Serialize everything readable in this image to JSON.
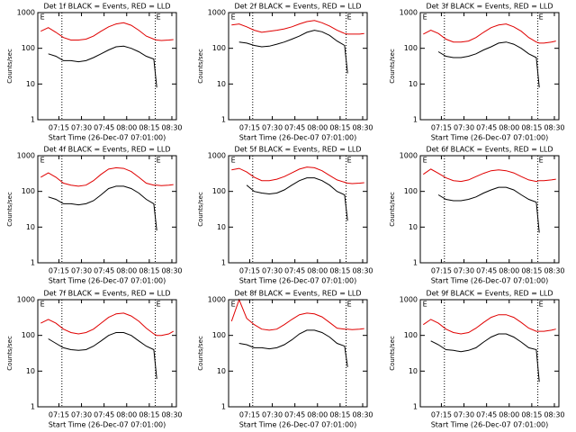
{
  "chart_data": [
    {
      "type": "line",
      "title": "Det 1f BLACK = Events, RED = LLD",
      "xlabel": "Start Time (26-Dec-07 07:01:00)",
      "ylabel": "Counts/sec",
      "log_y": true,
      "x": [
        "07:03",
        "07:08",
        "07:13",
        "07:18",
        "07:23",
        "07:28",
        "07:33",
        "07:38",
        "07:43",
        "07:48",
        "07:53",
        "07:58",
        "08:03",
        "08:08",
        "08:13",
        "08:18",
        "08:20",
        "08:23",
        "08:28",
        "08:31"
      ],
      "xlim": [
        "07:01",
        "08:33"
      ],
      "xticks": [
        "07:15",
        "07:30",
        "07:45",
        "08:00",
        "08:15",
        "08:30"
      ],
      "ylim": [
        1,
        1000
      ],
      "yticks": [
        1,
        10,
        100,
        1000
      ],
      "vlines": [
        "07:17",
        "08:19"
      ],
      "annotations": [
        {
          "x": "07:02",
          "label": "E"
        },
        {
          "x": "08:19",
          "label": "E"
        }
      ],
      "series": [
        {
          "name": "RED",
          "color": "#e00000",
          "values": [
            300,
            380,
            280,
            200,
            170,
            170,
            180,
            220,
            300,
            400,
            480,
            520,
            440,
            320,
            220,
            180,
            170,
            165,
            170,
            175
          ]
        },
        {
          "name": "BLACK",
          "color": "#000000",
          "values": [
            null,
            70,
            60,
            45,
            45,
            42,
            45,
            55,
            70,
            90,
            110,
            115,
            100,
            80,
            60,
            50,
            8,
            null,
            null,
            null
          ]
        }
      ]
    },
    {
      "type": "line",
      "title": "Det 2f BLACK = Events, RED = LLD",
      "xlabel": "Start Time (26-Dec-07 07:01:00)",
      "ylabel": "Counts/sec",
      "log_y": true,
      "x": [
        "07:03",
        "07:08",
        "07:13",
        "07:18",
        "07:23",
        "07:28",
        "07:33",
        "07:38",
        "07:43",
        "07:48",
        "07:53",
        "07:58",
        "08:03",
        "08:08",
        "08:13",
        "08:18",
        "08:20",
        "08:23",
        "08:28",
        "08:31"
      ],
      "xlim": [
        "07:01",
        "08:33"
      ],
      "xticks": [
        "07:15",
        "07:30",
        "07:45",
        "08:00",
        "08:15",
        "08:30"
      ],
      "ylim": [
        1,
        1000
      ],
      "yticks": [
        1,
        10,
        100,
        1000
      ],
      "vlines": [
        "07:17",
        "08:19"
      ],
      "annotations": [
        {
          "x": "07:02",
          "label": "E"
        },
        {
          "x": "08:19",
          "label": "E"
        }
      ],
      "series": [
        {
          "name": "RED",
          "color": "#e00000",
          "values": [
            450,
            480,
            400,
            320,
            280,
            300,
            320,
            350,
            400,
            480,
            560,
            600,
            520,
            420,
            320,
            260,
            250,
            250,
            250,
            260
          ]
        },
        {
          "name": "BLACK",
          "color": "#000000",
          "values": [
            null,
            150,
            140,
            120,
            110,
            115,
            130,
            150,
            180,
            220,
            280,
            320,
            290,
            230,
            160,
            120,
            20,
            null,
            null,
            null
          ]
        }
      ]
    },
    {
      "type": "line",
      "title": "Det 3f BLACK = Events, RED = LLD",
      "xlabel": "Start Time (26-Dec-07 07:01:00)",
      "ylabel": "Counts/sec",
      "log_y": true,
      "x": [
        "07:03",
        "07:08",
        "07:13",
        "07:18",
        "07:23",
        "07:28",
        "07:33",
        "07:38",
        "07:43",
        "07:48",
        "07:53",
        "07:58",
        "08:03",
        "08:08",
        "08:13",
        "08:18",
        "08:20",
        "08:23",
        "08:28",
        "08:31"
      ],
      "xlim": [
        "07:01",
        "08:33"
      ],
      "xticks": [
        "07:15",
        "07:30",
        "07:45",
        "08:00",
        "08:15",
        "08:30"
      ],
      "ylim": [
        1,
        1000
      ],
      "yticks": [
        1,
        10,
        100,
        1000
      ],
      "vlines": [
        "07:17",
        "08:19"
      ],
      "annotations": [
        {
          "x": "07:02",
          "label": "E"
        },
        {
          "x": "08:19",
          "label": "E"
        }
      ],
      "series": [
        {
          "name": "RED",
          "color": "#e00000",
          "values": [
            250,
            320,
            260,
            180,
            150,
            150,
            160,
            200,
            280,
            380,
            450,
            480,
            400,
            300,
            200,
            150,
            140,
            140,
            150,
            160
          ]
        },
        {
          "name": "BLACK",
          "color": "#000000",
          "values": [
            null,
            null,
            80,
            60,
            55,
            55,
            60,
            70,
            90,
            110,
            140,
            150,
            130,
            100,
            70,
            55,
            8,
            null,
            null,
            null
          ]
        }
      ]
    },
    {
      "type": "line",
      "title": "Det 4f BLACK = Events, RED = LLD",
      "xlabel": "Start Time (26-Dec-07 07:01:00)",
      "ylabel": "Counts/sec",
      "log_y": true,
      "x": [
        "07:03",
        "07:08",
        "07:13",
        "07:18",
        "07:23",
        "07:28",
        "07:33",
        "07:38",
        "07:43",
        "07:48",
        "07:53",
        "07:58",
        "08:03",
        "08:08",
        "08:13",
        "08:18",
        "08:20",
        "08:23",
        "08:28",
        "08:31"
      ],
      "xlim": [
        "07:01",
        "08:33"
      ],
      "xticks": [
        "07:15",
        "07:30",
        "07:45",
        "08:00",
        "08:15",
        "08:30"
      ],
      "ylim": [
        1,
        1000
      ],
      "yticks": [
        1,
        10,
        100,
        1000
      ],
      "vlines": [
        "07:17",
        "08:19"
      ],
      "annotations": [
        {
          "x": "07:02",
          "label": "E"
        },
        {
          "x": "08:19",
          "label": "E"
        }
      ],
      "series": [
        {
          "name": "RED",
          "color": "#e00000",
          "values": [
            250,
            330,
            250,
            170,
            150,
            140,
            150,
            200,
            300,
            420,
            460,
            440,
            360,
            250,
            170,
            150,
            150,
            145,
            150,
            155
          ]
        },
        {
          "name": "BLACK",
          "color": "#000000",
          "values": [
            null,
            70,
            60,
            45,
            45,
            42,
            45,
            55,
            80,
            120,
            140,
            140,
            120,
            90,
            60,
            45,
            8,
            null,
            null,
            null
          ]
        }
      ]
    },
    {
      "type": "line",
      "title": "Det 5f BLACK = Events, RED = LLD",
      "xlabel": "Start Time (26-Dec-07 07:01:00)",
      "ylabel": "Counts/sec",
      "log_y": true,
      "x": [
        "07:03",
        "07:08",
        "07:13",
        "07:18",
        "07:23",
        "07:28",
        "07:33",
        "07:38",
        "07:43",
        "07:48",
        "07:53",
        "07:58",
        "08:03",
        "08:08",
        "08:13",
        "08:18",
        "08:20",
        "08:23",
        "08:28",
        "08:31"
      ],
      "xlim": [
        "07:01",
        "08:33"
      ],
      "xticks": [
        "07:15",
        "07:30",
        "07:45",
        "08:00",
        "08:15",
        "08:30"
      ],
      "ylim": [
        1,
        1000
      ],
      "yticks": [
        1,
        10,
        100,
        1000
      ],
      "vlines": [
        "07:17",
        "08:19"
      ],
      "annotations": [
        {
          "x": "07:02",
          "label": "E"
        },
        {
          "x": "08:19",
          "label": "E"
        }
      ],
      "series": [
        {
          "name": "RED",
          "color": "#e00000",
          "values": [
            400,
            440,
            350,
            250,
            200,
            200,
            220,
            260,
            330,
            420,
            480,
            460,
            380,
            280,
            210,
            180,
            170,
            165,
            170,
            175
          ]
        },
        {
          "name": "BLACK",
          "color": "#000000",
          "values": [
            null,
            null,
            150,
            100,
            90,
            85,
            90,
            110,
            150,
            200,
            240,
            240,
            200,
            150,
            100,
            80,
            15,
            null,
            null,
            null
          ]
        }
      ]
    },
    {
      "type": "line",
      "title": "Det 6f BLACK = Events, RED = LLD",
      "xlabel": "Start Time (26-Dec-07 07:01:00)",
      "ylabel": "Counts/sec",
      "log_y": true,
      "x": [
        "07:03",
        "07:08",
        "07:13",
        "07:18",
        "07:23",
        "07:28",
        "07:33",
        "07:38",
        "07:43",
        "07:48",
        "07:53",
        "07:58",
        "08:03",
        "08:08",
        "08:13",
        "08:18",
        "08:20",
        "08:23",
        "08:28",
        "08:31"
      ],
      "xlim": [
        "07:01",
        "08:33"
      ],
      "xticks": [
        "07:15",
        "07:30",
        "07:45",
        "08:00",
        "08:15",
        "08:30"
      ],
      "ylim": [
        1,
        1000
      ],
      "yticks": [
        1,
        10,
        100,
        1000
      ],
      "vlines": [
        "07:17",
        "08:19"
      ],
      "annotations": [
        {
          "x": "07:02",
          "label": "E"
        },
        {
          "x": "08:19",
          "label": "E"
        }
      ],
      "series": [
        {
          "name": "RED",
          "color": "#e00000",
          "values": [
            300,
            420,
            320,
            240,
            200,
            190,
            210,
            260,
            320,
            380,
            400,
            380,
            330,
            260,
            210,
            190,
            200,
            200,
            210,
            220
          ]
        },
        {
          "name": "BLACK",
          "color": "#000000",
          "values": [
            null,
            null,
            80,
            60,
            55,
            55,
            60,
            70,
            90,
            110,
            130,
            130,
            110,
            80,
            60,
            50,
            7,
            null,
            null,
            null
          ]
        }
      ]
    },
    {
      "type": "line",
      "title": "Det 7f BLACK = Events, RED = LLD",
      "xlabel": "Start Time (26-Dec-07 07:01:00)",
      "ylabel": "Counts/sec",
      "log_y": true,
      "x": [
        "07:03",
        "07:08",
        "07:13",
        "07:18",
        "07:23",
        "07:28",
        "07:33",
        "07:38",
        "07:43",
        "07:48",
        "07:53",
        "07:58",
        "08:03",
        "08:08",
        "08:13",
        "08:18",
        "08:20",
        "08:23",
        "08:28",
        "08:31"
      ],
      "xlim": [
        "07:01",
        "08:33"
      ],
      "xticks": [
        "07:15",
        "07:30",
        "07:45",
        "08:00",
        "08:15",
        "08:30"
      ],
      "ylim": [
        1,
        1000
      ],
      "yticks": [
        1,
        10,
        100,
        1000
      ],
      "vlines": [
        "07:17",
        "08:19"
      ],
      "annotations": [
        {
          "x": "07:02",
          "label": "E"
        },
        {
          "x": "08:19",
          "label": "E"
        }
      ],
      "series": [
        {
          "name": "RED",
          "color": "#e00000",
          "values": [
            220,
            280,
            220,
            150,
            120,
            110,
            120,
            150,
            220,
            320,
            400,
            420,
            350,
            250,
            160,
            110,
            100,
            100,
            110,
            130
          ]
        },
        {
          "name": "BLACK",
          "color": "#000000",
          "values": [
            null,
            80,
            60,
            45,
            40,
            38,
            40,
            50,
            70,
            100,
            120,
            120,
            100,
            70,
            50,
            40,
            6,
            null,
            null,
            null
          ]
        }
      ]
    },
    {
      "type": "line",
      "title": "Det 8f BLACK = Events, RED = LLD",
      "xlabel": "Start Time (26-Dec-07 07:01:00)",
      "ylabel": "Counts/sec",
      "log_y": true,
      "x": [
        "07:03",
        "07:08",
        "07:13",
        "07:18",
        "07:23",
        "07:28",
        "07:33",
        "07:38",
        "07:43",
        "07:48",
        "07:53",
        "07:58",
        "08:03",
        "08:08",
        "08:13",
        "08:18",
        "08:20",
        "08:23",
        "08:28",
        "08:31"
      ],
      "xlim": [
        "07:01",
        "08:33"
      ],
      "xticks": [
        "07:15",
        "07:30",
        "07:45",
        "08:00",
        "08:15",
        "08:30"
      ],
      "ylim": [
        1,
        1000
      ],
      "yticks": [
        1,
        10,
        100,
        1000
      ],
      "vlines": [
        "07:17",
        "08:19"
      ],
      "annotations": [
        {
          "x": "07:02",
          "label": "E"
        },
        {
          "x": "08:19",
          "label": "E"
        }
      ],
      "series": [
        {
          "name": "RED",
          "color": "#e00000",
          "values": [
            250,
            1000,
            300,
            200,
            150,
            140,
            150,
            200,
            280,
            380,
            420,
            400,
            330,
            230,
            160,
            150,
            150,
            145,
            150,
            155
          ]
        },
        {
          "name": "BLACK",
          "color": "#000000",
          "values": [
            null,
            60,
            55,
            45,
            45,
            42,
            45,
            55,
            75,
            110,
            140,
            140,
            120,
            90,
            60,
            50,
            13,
            null,
            null,
            null
          ]
        }
      ]
    },
    {
      "type": "line",
      "title": "Det 9f BLACK = Events, RED = LLD",
      "xlabel": "Start Time (26-Dec-07 07:01:00)",
      "ylabel": "Counts/sec",
      "log_y": true,
      "x": [
        "07:03",
        "07:08",
        "07:13",
        "07:18",
        "07:23",
        "07:28",
        "07:33",
        "07:38",
        "07:43",
        "07:48",
        "07:53",
        "07:58",
        "08:03",
        "08:08",
        "08:13",
        "08:18",
        "08:20",
        "08:23",
        "08:28",
        "08:31"
      ],
      "xlim": [
        "07:01",
        "08:33"
      ],
      "xticks": [
        "07:15",
        "07:30",
        "07:45",
        "08:00",
        "08:15",
        "08:30"
      ],
      "ylim": [
        1,
        1000
      ],
      "yticks": [
        1,
        10,
        100,
        1000
      ],
      "vlines": [
        "07:17",
        "08:19"
      ],
      "annotations": [
        {
          "x": "07:02",
          "label": "E"
        },
        {
          "x": "08:19",
          "label": "E"
        }
      ],
      "series": [
        {
          "name": "RED",
          "color": "#e00000",
          "values": [
            200,
            280,
            220,
            150,
            120,
            110,
            120,
            160,
            230,
            320,
            380,
            380,
            320,
            230,
            160,
            130,
            130,
            130,
            140,
            150
          ]
        },
        {
          "name": "BLACK",
          "color": "#000000",
          "values": [
            null,
            70,
            55,
            40,
            38,
            35,
            38,
            45,
            65,
            90,
            110,
            110,
            90,
            65,
            45,
            40,
            5,
            null,
            null,
            null
          ]
        }
      ]
    }
  ]
}
